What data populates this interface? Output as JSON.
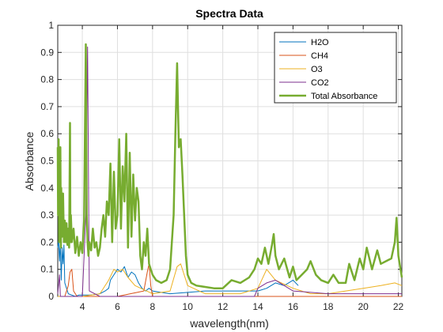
{
  "chart_data": {
    "type": "line",
    "title": "Spectra Data",
    "xlabel": "wavelength(nm)",
    "ylabel": "Absorbance",
    "xlim": [
      2.6,
      22.2
    ],
    "ylim": [
      0,
      1
    ],
    "xticks": [
      4,
      6,
      8,
      10,
      12,
      14,
      16,
      18,
      20,
      22
    ],
    "yticks": [
      0,
      0.1,
      0.2,
      0.3,
      0.4,
      0.5,
      0.6,
      0.7,
      0.8,
      0.9,
      1
    ],
    "xtick_labels": [
      "4",
      "6",
      "8",
      "10",
      "12",
      "14",
      "16",
      "18",
      "20",
      "22"
    ],
    "ytick_labels": [
      "0",
      "0.1",
      "0.2",
      "0.3",
      "0.4",
      "0.5",
      "0.6",
      "0.7",
      "0.8",
      "0.9",
      "1"
    ],
    "grid": true,
    "legend_position": "top-right",
    "series": [
      {
        "name": "H2O",
        "color": "#0072BD",
        "x": [
          2.6,
          2.65,
          2.7,
          2.75,
          2.8,
          2.85,
          2.9,
          2.95,
          3.0,
          3.1,
          3.2,
          3.4,
          3.6,
          3.8,
          4.0,
          4.5,
          5.0,
          5.3,
          5.5,
          5.6,
          5.8,
          6.0,
          6.2,
          6.4,
          6.6,
          6.8,
          7.0,
          7.2,
          7.4,
          7.6,
          7.8,
          8.0,
          9.0,
          10.0,
          11.0,
          12.0,
          13.0,
          14.0,
          14.5,
          15.0,
          15.5,
          16.0,
          16.3
        ],
        "y": [
          0.18,
          0.21,
          0.13,
          0.2,
          0.06,
          0.18,
          0.12,
          0.19,
          0.05,
          0.03,
          0.01,
          0.005,
          0.0,
          0.005,
          0.005,
          0.005,
          0.01,
          0.02,
          0.03,
          0.06,
          0.08,
          0.1,
          0.09,
          0.11,
          0.07,
          0.09,
          0.08,
          0.05,
          0.03,
          0.02,
          0.03,
          0.02,
          0.01,
          0.015,
          0.02,
          0.02,
          0.02,
          0.02,
          0.03,
          0.05,
          0.04,
          0.06,
          0.04
        ]
      },
      {
        "name": "CH4",
        "color": "#D95319",
        "x": [
          2.6,
          3.0,
          3.2,
          3.3,
          3.4,
          3.5,
          3.7,
          4.0,
          6.0,
          7.5,
          7.7,
          7.8,
          7.9,
          8.0,
          10.0,
          16.0,
          22.2
        ],
        "y": [
          0.0,
          0.0,
          0.04,
          0.09,
          0.1,
          0.02,
          0.0,
          0.0,
          0.0,
          0.02,
          0.09,
          0.12,
          0.04,
          0.0,
          0.0,
          0.0,
          0.0
        ]
      },
      {
        "name": "O3",
        "color": "#EDB120",
        "x": [
          2.6,
          4.0,
          5.0,
          5.5,
          5.8,
          6.0,
          6.3,
          6.6,
          7.0,
          8.0,
          9.0,
          9.4,
          9.6,
          9.8,
          10.0,
          11.0,
          13.0,
          14.0,
          14.5,
          15.0,
          16.0,
          17.0,
          18.0,
          19.0,
          20.0,
          21.0,
          21.8,
          22.2
        ],
        "y": [
          0.0,
          0.0,
          0.01,
          0.06,
          0.1,
          0.09,
          0.1,
          0.07,
          0.04,
          0.01,
          0.02,
          0.11,
          0.12,
          0.08,
          0.04,
          0.01,
          0.01,
          0.03,
          0.1,
          0.06,
          0.03,
          0.01,
          0.01,
          0.02,
          0.03,
          0.04,
          0.05,
          0.04
        ]
      },
      {
        "name": "CO2",
        "color": "#7E2F8E",
        "x": [
          2.6,
          2.7,
          2.75,
          2.8,
          3.0,
          4.0,
          4.2,
          4.3,
          4.4,
          5.0,
          9.0,
          10.0,
          12.0,
          13.8,
          14.0,
          14.5,
          15.0,
          15.5,
          16.0,
          18.0,
          20.0,
          22.2
        ],
        "y": [
          0.01,
          0.08,
          0.0,
          0.0,
          0.0,
          0.0,
          0.3,
          0.92,
          0.02,
          0.0,
          0.0,
          0.0,
          0.0,
          0.0,
          0.03,
          0.05,
          0.06,
          0.04,
          0.02,
          0.01,
          0.01,
          0.01
        ]
      },
      {
        "name": "Total Absorbance",
        "color": "#77AC30",
        "x": [
          2.6,
          2.62,
          2.65,
          2.68,
          2.7,
          2.72,
          2.75,
          2.78,
          2.8,
          2.85,
          2.9,
          2.95,
          3.0,
          3.05,
          3.1,
          3.15,
          3.2,
          3.25,
          3.3,
          3.32,
          3.35,
          3.4,
          3.5,
          3.6,
          3.7,
          3.8,
          3.9,
          4.0,
          4.1,
          4.2,
          4.25,
          4.3,
          4.35,
          4.4,
          4.5,
          4.6,
          4.7,
          4.8,
          4.9,
          5.0,
          5.1,
          5.2,
          5.3,
          5.4,
          5.5,
          5.6,
          5.7,
          5.8,
          5.9,
          6.0,
          6.1,
          6.2,
          6.3,
          6.4,
          6.5,
          6.6,
          6.7,
          6.8,
          6.9,
          7.0,
          7.1,
          7.2,
          7.3,
          7.4,
          7.5,
          7.6,
          7.7,
          7.8,
          7.9,
          8.0,
          8.2,
          8.5,
          8.8,
          9.0,
          9.2,
          9.3,
          9.4,
          9.45,
          9.5,
          9.55,
          9.6,
          9.7,
          9.8,
          9.9,
          10.0,
          10.2,
          10.5,
          11.0,
          11.5,
          12.0,
          12.5,
          13.0,
          13.5,
          13.8,
          14.0,
          14.2,
          14.4,
          14.6,
          14.8,
          14.9,
          15.0,
          15.2,
          15.5,
          15.8,
          16.0,
          16.2,
          16.5,
          16.8,
          17.0,
          17.3,
          17.6,
          18.0,
          18.3,
          18.6,
          19.0,
          19.2,
          19.5,
          19.8,
          20.0,
          20.2,
          20.5,
          20.8,
          21.0,
          21.3,
          21.6,
          21.8,
          21.9,
          22.0,
          22.2
        ],
        "y": [
          0.55,
          0.3,
          0.58,
          0.2,
          0.45,
          0.25,
          0.55,
          0.18,
          0.4,
          0.22,
          0.38,
          0.2,
          0.28,
          0.2,
          0.27,
          0.19,
          0.25,
          0.18,
          0.64,
          0.2,
          0.3,
          0.2,
          0.25,
          0.16,
          0.22,
          0.15,
          0.2,
          0.16,
          0.28,
          0.93,
          0.3,
          0.2,
          0.15,
          0.2,
          0.17,
          0.25,
          0.18,
          0.2,
          0.15,
          0.18,
          0.25,
          0.3,
          0.22,
          0.35,
          0.3,
          0.49,
          0.2,
          0.46,
          0.25,
          0.3,
          0.58,
          0.25,
          0.48,
          0.35,
          0.6,
          0.18,
          0.53,
          0.22,
          0.45,
          0.28,
          0.4,
          0.35,
          0.15,
          0.1,
          0.2,
          0.15,
          0.25,
          0.12,
          0.1,
          0.08,
          0.06,
          0.05,
          0.06,
          0.1,
          0.3,
          0.6,
          0.86,
          0.7,
          0.55,
          0.57,
          0.58,
          0.45,
          0.3,
          0.15,
          0.08,
          0.05,
          0.04,
          0.035,
          0.03,
          0.03,
          0.06,
          0.05,
          0.07,
          0.1,
          0.14,
          0.12,
          0.18,
          0.12,
          0.19,
          0.23,
          0.15,
          0.1,
          0.14,
          0.07,
          0.11,
          0.06,
          0.08,
          0.1,
          0.13,
          0.08,
          0.06,
          0.05,
          0.08,
          0.05,
          0.05,
          0.12,
          0.06,
          0.14,
          0.1,
          0.18,
          0.1,
          0.17,
          0.12,
          0.13,
          0.14,
          0.2,
          0.29,
          0.15,
          0.07
        ]
      }
    ]
  }
}
